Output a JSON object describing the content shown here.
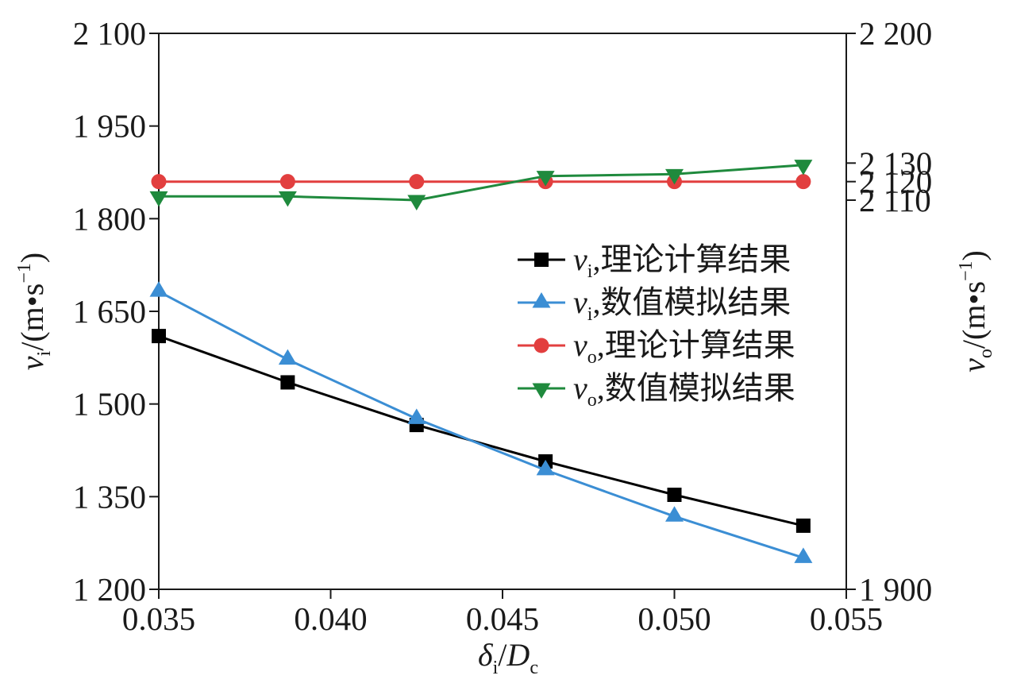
{
  "chart_data": {
    "type": "line",
    "x": [
      0.035,
      0.03875,
      0.0425,
      0.04625,
      0.05,
      0.05375
    ],
    "x_axis": {
      "lim": [
        0.035,
        0.055
      ],
      "ticks": [
        {
          "value": 0.035,
          "label": "0.035"
        },
        {
          "value": 0.04,
          "label": "0.040"
        },
        {
          "value": 0.045,
          "label": "0.045"
        },
        {
          "value": 0.05,
          "label": "0.050"
        },
        {
          "value": 0.055,
          "label": "0.055"
        }
      ],
      "label": {
        "var": "δ",
        "sub": "i",
        "sep": "/",
        "var2": "D",
        "sub2": "c"
      }
    },
    "y_left": {
      "lim": [
        1200,
        2100
      ],
      "ticks": [
        {
          "value": 1200,
          "label": "1 200"
        },
        {
          "value": 1350,
          "label": "1 350"
        },
        {
          "value": 1500,
          "label": "1 500"
        },
        {
          "value": 1650,
          "label": "1 650"
        },
        {
          "value": 1800,
          "label": "1 800"
        },
        {
          "value": 1950,
          "label": "1 950"
        },
        {
          "value": 2100,
          "label": "2 100"
        }
      ],
      "label": {
        "var": "v",
        "sub": "i",
        "unit": "/(m•s",
        "sup": "−1",
        "close": ")"
      }
    },
    "y_right": {
      "lim": [
        1900,
        2200
      ],
      "ticks": [
        {
          "value": 1900,
          "label": "1 900"
        },
        {
          "value": 2110,
          "label": "2 110"
        },
        {
          "value": 2120,
          "label": "2 120"
        },
        {
          "value": 2130,
          "label": "2 130"
        },
        {
          "value": 2200,
          "label": "2 200"
        }
      ],
      "label": {
        "var": "v",
        "sub": "o",
        "unit": "/(m•s",
        "sup": "−1",
        "close": ")"
      }
    },
    "series": [
      {
        "name": {
          "var": "v",
          "sub": "i",
          "text": ",理论计算结果"
        },
        "axis": "left",
        "color": "#000000",
        "marker": "square",
        "values": [
          1610,
          1535,
          1466,
          1407,
          1353,
          1303
        ]
      },
      {
        "name": {
          "var": "v",
          "sub": "i",
          "text": ",数值模拟结果"
        },
        "axis": "left",
        "color": "#3b8ed4",
        "marker": "triangle-up",
        "values": [
          1682,
          1572,
          1476,
          1393,
          1318,
          1251
        ]
      },
      {
        "name": {
          "var": "v",
          "sub": "o",
          "text": ",理论计算结果"
        },
        "axis": "right",
        "color": "#e23f3f",
        "marker": "circle",
        "values": [
          2120,
          2120,
          2120,
          2120,
          2120,
          2120
        ]
      },
      {
        "name": {
          "var": "v",
          "sub": "o",
          "text": ",数值模拟结果"
        },
        "axis": "right",
        "color": "#1f8a3d",
        "marker": "triangle-down",
        "values": [
          2112,
          2112,
          2110,
          2123,
          2124,
          2129
        ]
      }
    ],
    "legend": "center-right",
    "grid": false
  }
}
